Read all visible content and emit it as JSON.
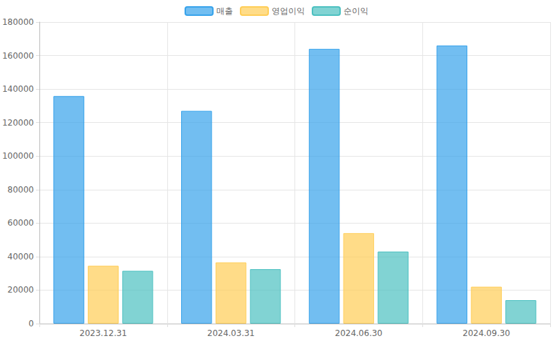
{
  "chart_data": {
    "type": "bar",
    "categories": [
      "2023.12.31",
      "2024.03.31",
      "2024.06.30",
      "2024.09.30"
    ],
    "series": [
      {
        "name": "매출",
        "color": "#36a2eb",
        "values": [
          135800,
          127000,
          164000,
          166000
        ]
      },
      {
        "name": "영업이익",
        "color": "#ffcd56",
        "values": [
          34500,
          36500,
          54000,
          22000
        ]
      },
      {
        "name": "순이익",
        "color": "#4bc0c0",
        "values": [
          31500,
          32500,
          43000,
          14000
        ]
      }
    ],
    "ylim": [
      0,
      180000
    ],
    "yticks": [
      0,
      20000,
      40000,
      60000,
      80000,
      100000,
      120000,
      140000,
      160000,
      180000
    ],
    "grid": true,
    "legend": "top"
  }
}
